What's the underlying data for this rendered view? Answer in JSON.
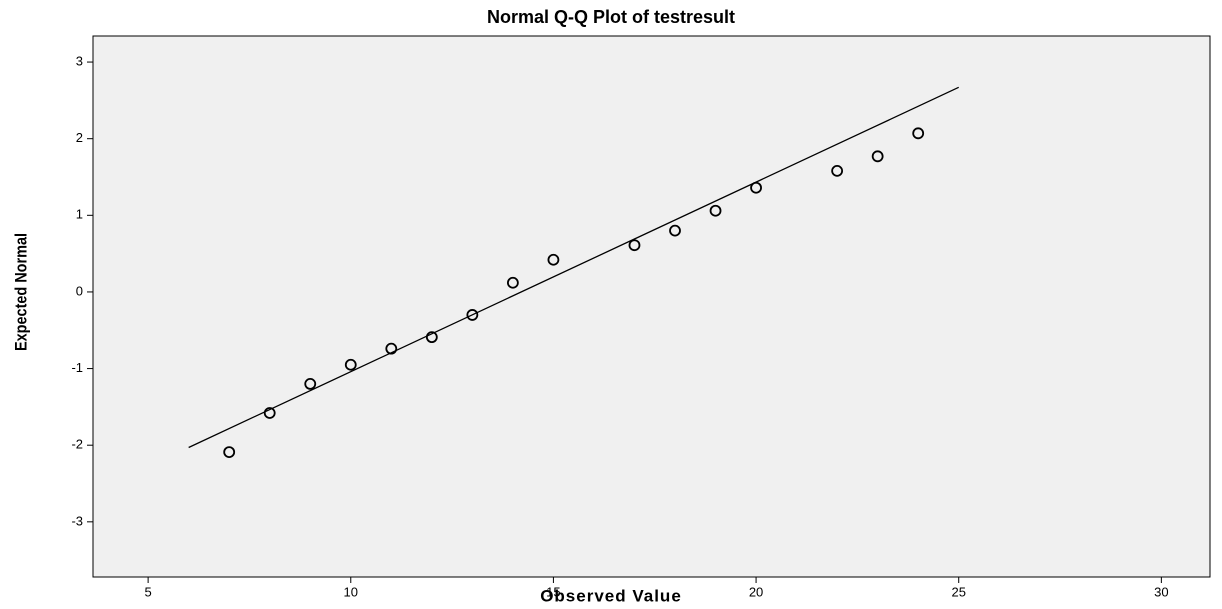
{
  "chart_data": {
    "type": "scatter",
    "title": "Normal Q-Q Plot of testresult",
    "x_label": "Observed Value",
    "y_label": "Expected Normal",
    "x": [
      7,
      8,
      9,
      10,
      11,
      12,
      13,
      14,
      15,
      17,
      18,
      19,
      20,
      22,
      23,
      24
    ],
    "values": [
      -2.09,
      -1.58,
      -1.2,
      -0.95,
      -0.74,
      -0.59,
      -0.3,
      0.12,
      0.42,
      0.61,
      0.8,
      1.06,
      1.36,
      1.58,
      1.77,
      2.07
    ],
    "line": {
      "x": [
        6,
        25
      ],
      "y": [
        -2.03,
        2.67
      ]
    },
    "xlim": [
      3.64,
      31.2
    ],
    "ylim": [
      -3.72,
      3.34
    ],
    "xticks": [
      5,
      10,
      15,
      20,
      25,
      30
    ],
    "yticks": [
      -3,
      -2,
      -1,
      0,
      1,
      2,
      3
    ],
    "color": "#000000",
    "background": "#f0f0f0",
    "grid": false
  }
}
